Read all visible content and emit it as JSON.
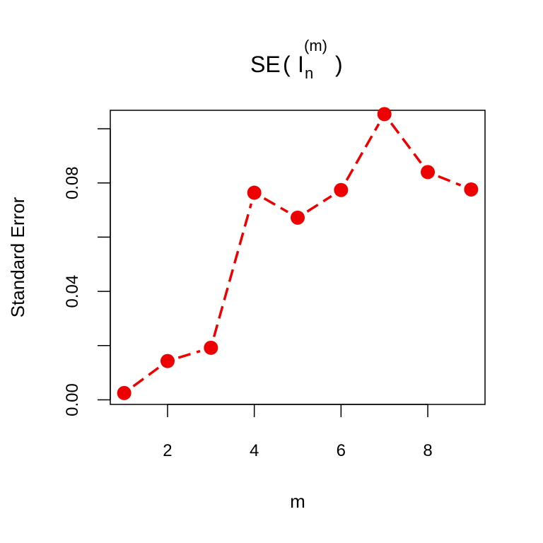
{
  "chart_data": {
    "type": "line",
    "title": {
      "prefix": "SE",
      "open": "(",
      "base": "I",
      "subscript": "n",
      "superscript": "(m)",
      "close": ")"
    },
    "xlabel": "m",
    "ylabel": "Standard Error",
    "xlim": [
      0.68,
      9.32
    ],
    "ylim": [
      -0.0017,
      0.1068
    ],
    "xticks": [
      2,
      4,
      6,
      8
    ],
    "xtick_labels": [
      "2",
      "4",
      "6",
      "8"
    ],
    "yticks": [
      0.0,
      0.02,
      0.04,
      0.06,
      0.08,
      0.1
    ],
    "ytick_labels": [
      "0.00",
      "",
      "0.04",
      "",
      "0.08",
      ""
    ],
    "grid": false,
    "series": [
      {
        "x": [
          1,
          2,
          3,
          4,
          5,
          6,
          7,
          8,
          9
        ],
        "values": [
          0.0025,
          0.0143,
          0.0192,
          0.0764,
          0.0672,
          0.0774,
          0.1054,
          0.084,
          0.0776
        ],
        "color": "#ee0000",
        "line_style": "dashed",
        "marker": "filled-circle"
      }
    ]
  }
}
